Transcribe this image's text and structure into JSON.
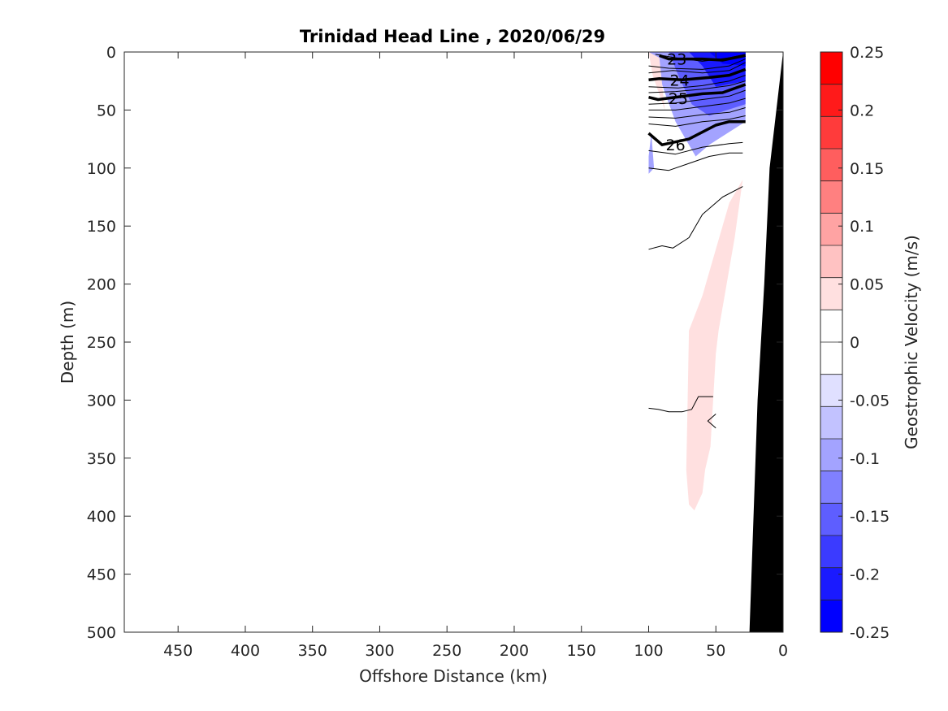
{
  "chart_data": {
    "type": "contour",
    "title": "Trinidad Head Line , 2020/06/29",
    "xlabel": "Offshore Distance (km)",
    "ylabel": "Depth (m)",
    "xlim": [
      490,
      0
    ],
    "ylim": [
      0,
      500
    ],
    "x_reversed": true,
    "y_reversed": true,
    "x_ticks": [
      450,
      400,
      350,
      300,
      250,
      200,
      150,
      100,
      50,
      0
    ],
    "y_ticks": [
      0,
      50,
      100,
      150,
      200,
      250,
      300,
      350,
      400,
      450,
      500
    ],
    "colorbar": {
      "label": "Geostrophic Velocity (m/s)",
      "range": [
        -0.25,
        0.25
      ],
      "step": 0.025,
      "tick_values": [
        0.25,
        0.2,
        0.15,
        0.1,
        0.05,
        0,
        -0.05,
        -0.1,
        -0.15,
        -0.2,
        -0.25
      ],
      "tick_labels": [
        "0.25",
        "0.2",
        "0.15",
        "0.1",
        "0.05",
        "0",
        "-0.05",
        "-0.1",
        "-0.15",
        "-0.2",
        "-0.25"
      ],
      "colors": [
        "#ff0000",
        "#ff1a1a",
        "#ff3b3b",
        "#ff5e5e",
        "#ff8080",
        "#ffa3a3",
        "#ffc2c2",
        "#ffe0e0",
        "#ffffff",
        "#ffffff",
        "#e0e0ff",
        "#c2c2ff",
        "#a3a3ff",
        "#8080ff",
        "#5e5eff",
        "#3b3bff",
        "#1a1aff",
        "#0000ff"
      ]
    },
    "density_contour_labels": [
      "23",
      "24",
      "25",
      "26"
    ],
    "velocity_regions": [
      {
        "sign": "negative",
        "level": -0.05,
        "polygon": [
          [
            100,
            0
          ],
          [
            28,
            0
          ],
          [
            28,
            60
          ],
          [
            55,
            80
          ],
          [
            65,
            90
          ],
          [
            80,
            60
          ],
          [
            88,
            35
          ],
          [
            95,
            10
          ]
        ]
      },
      {
        "sign": "negative",
        "level": -0.1,
        "polygon": [
          [
            85,
            0
          ],
          [
            28,
            0
          ],
          [
            28,
            45
          ],
          [
            55,
            55
          ],
          [
            68,
            45
          ],
          [
            78,
            20
          ]
        ]
      },
      {
        "sign": "negative",
        "level": -0.15,
        "polygon": [
          [
            70,
            0
          ],
          [
            28,
            0
          ],
          [
            28,
            25
          ],
          [
            50,
            30
          ],
          [
            60,
            12
          ]
        ]
      },
      {
        "sign": "negative",
        "level": -0.2,
        "polygon": [
          [
            55,
            0
          ],
          [
            28,
            0
          ],
          [
            28,
            12
          ],
          [
            45,
            10
          ]
        ]
      },
      {
        "sign": "negative",
        "level": -0.05,
        "polygon": [
          [
            100,
            90
          ],
          [
            98,
            70
          ],
          [
            96,
            100
          ],
          [
            100,
            105
          ]
        ]
      },
      {
        "sign": "positive",
        "level": 0.05,
        "polygon": [
          [
            100,
            0
          ],
          [
            92,
            5
          ],
          [
            88,
            50
          ],
          [
            91,
            40
          ],
          [
            97,
            20
          ]
        ]
      },
      {
        "sign": "positive",
        "level": 0.05,
        "polygon": [
          [
            30,
            110
          ],
          [
            36,
            160
          ],
          [
            42,
            200
          ],
          [
            48,
            240
          ],
          [
            50,
            260
          ],
          [
            52,
            300
          ],
          [
            54,
            340
          ],
          [
            58,
            360
          ],
          [
            60,
            380
          ],
          [
            66,
            395
          ],
          [
            70,
            390
          ],
          [
            72,
            360
          ],
          [
            71,
            300
          ],
          [
            70,
            240
          ],
          [
            60,
            210
          ],
          [
            50,
            170
          ],
          [
            40,
            130
          ]
        ]
      }
    ],
    "density_contours": [
      {
        "level": "22.5",
        "bold": false,
        "points": [
          [
            95,
            2
          ],
          [
            80,
            5
          ],
          [
            60,
            8
          ],
          [
            40,
            5
          ],
          [
            28,
            2
          ]
        ]
      },
      {
        "level": "23",
        "bold": true,
        "points": [
          [
            92,
            3
          ],
          [
            85,
            6
          ],
          [
            60,
            6
          ],
          [
            45,
            7
          ],
          [
            28,
            3
          ]
        ]
      },
      {
        "level": "23.2",
        "bold": false,
        "points": [
          [
            100,
            12
          ],
          [
            85,
            14
          ],
          [
            60,
            15
          ],
          [
            40,
            12
          ],
          [
            28,
            6
          ]
        ]
      },
      {
        "level": "23.5",
        "bold": false,
        "points": [
          [
            100,
            18
          ],
          [
            82,
            16
          ],
          [
            60,
            18
          ],
          [
            40,
            16
          ],
          [
            28,
            9
          ]
        ]
      },
      {
        "level": "24",
        "bold": true,
        "points": [
          [
            100,
            24
          ],
          [
            92,
            23
          ],
          [
            75,
            24
          ],
          [
            55,
            22
          ],
          [
            40,
            20
          ],
          [
            28,
            15
          ]
        ]
      },
      {
        "level": "24.3",
        "bold": false,
        "points": [
          [
            100,
            30
          ],
          [
            78,
            31
          ],
          [
            60,
            29
          ],
          [
            40,
            25
          ],
          [
            28,
            20
          ]
        ]
      },
      {
        "level": "24.6",
        "bold": false,
        "points": [
          [
            100,
            35
          ],
          [
            80,
            34
          ],
          [
            60,
            32
          ],
          [
            40,
            29
          ],
          [
            28,
            25
          ]
        ]
      },
      {
        "level": "25",
        "bold": true,
        "points": [
          [
            100,
            39
          ],
          [
            93,
            41
          ],
          [
            60,
            36
          ],
          [
            45,
            35
          ],
          [
            28,
            28
          ]
        ]
      },
      {
        "level": "25.2",
        "bold": false,
        "points": [
          [
            100,
            45
          ],
          [
            80,
            44
          ],
          [
            60,
            41
          ],
          [
            40,
            38
          ],
          [
            28,
            33
          ]
        ]
      },
      {
        "level": "25.4",
        "bold": false,
        "points": [
          [
            100,
            50
          ],
          [
            80,
            50
          ],
          [
            60,
            47
          ],
          [
            40,
            44
          ],
          [
            28,
            40
          ]
        ]
      },
      {
        "level": "25.6",
        "bold": false,
        "points": [
          [
            100,
            56
          ],
          [
            80,
            57
          ],
          [
            60,
            54
          ],
          [
            40,
            52
          ],
          [
            28,
            48
          ]
        ]
      },
      {
        "level": "25.8",
        "bold": false,
        "points": [
          [
            100,
            62
          ],
          [
            80,
            64
          ],
          [
            60,
            60
          ],
          [
            40,
            58
          ],
          [
            28,
            55
          ]
        ]
      },
      {
        "level": "26",
        "bold": true,
        "points": [
          [
            100,
            70
          ],
          [
            90,
            80
          ],
          [
            70,
            75
          ],
          [
            50,
            63
          ],
          [
            40,
            60
          ],
          [
            28,
            60
          ]
        ]
      },
      {
        "level": "26.2",
        "bold": false,
        "points": [
          [
            100,
            85
          ],
          [
            80,
            88
          ],
          [
            60,
            82
          ],
          [
            40,
            79
          ],
          [
            30,
            78
          ]
        ]
      },
      {
        "level": "26.4",
        "bold": false,
        "points": [
          [
            100,
            100
          ],
          [
            85,
            102
          ],
          [
            70,
            96
          ],
          [
            55,
            90
          ],
          [
            40,
            87
          ],
          [
            30,
            87
          ]
        ]
      },
      {
        "level": "26.6",
        "bold": false,
        "points": [
          [
            100,
            170
          ],
          [
            90,
            167
          ],
          [
            82,
            169
          ],
          [
            70,
            160
          ],
          [
            60,
            140
          ],
          [
            45,
            125
          ],
          [
            30,
            116
          ]
        ]
      },
      {
        "level": "26.8",
        "bold": false,
        "points": [
          [
            100,
            307
          ],
          [
            93,
            308
          ],
          [
            85,
            310
          ],
          [
            75,
            310
          ],
          [
            68,
            308
          ],
          [
            63,
            297
          ],
          [
            52,
            297
          ]
        ]
      },
      {
        "level": "26.8",
        "bold": false,
        "points": [
          [
            50,
            312
          ],
          [
            56,
            318
          ],
          [
            50,
            324
          ]
        ]
      }
    ],
    "bathymetry": [
      [
        25,
        500
      ],
      [
        22,
        400
      ],
      [
        19,
        300
      ],
      [
        14,
        200
      ],
      [
        10,
        100
      ],
      [
        0,
        0
      ],
      [
        0,
        500
      ]
    ]
  }
}
